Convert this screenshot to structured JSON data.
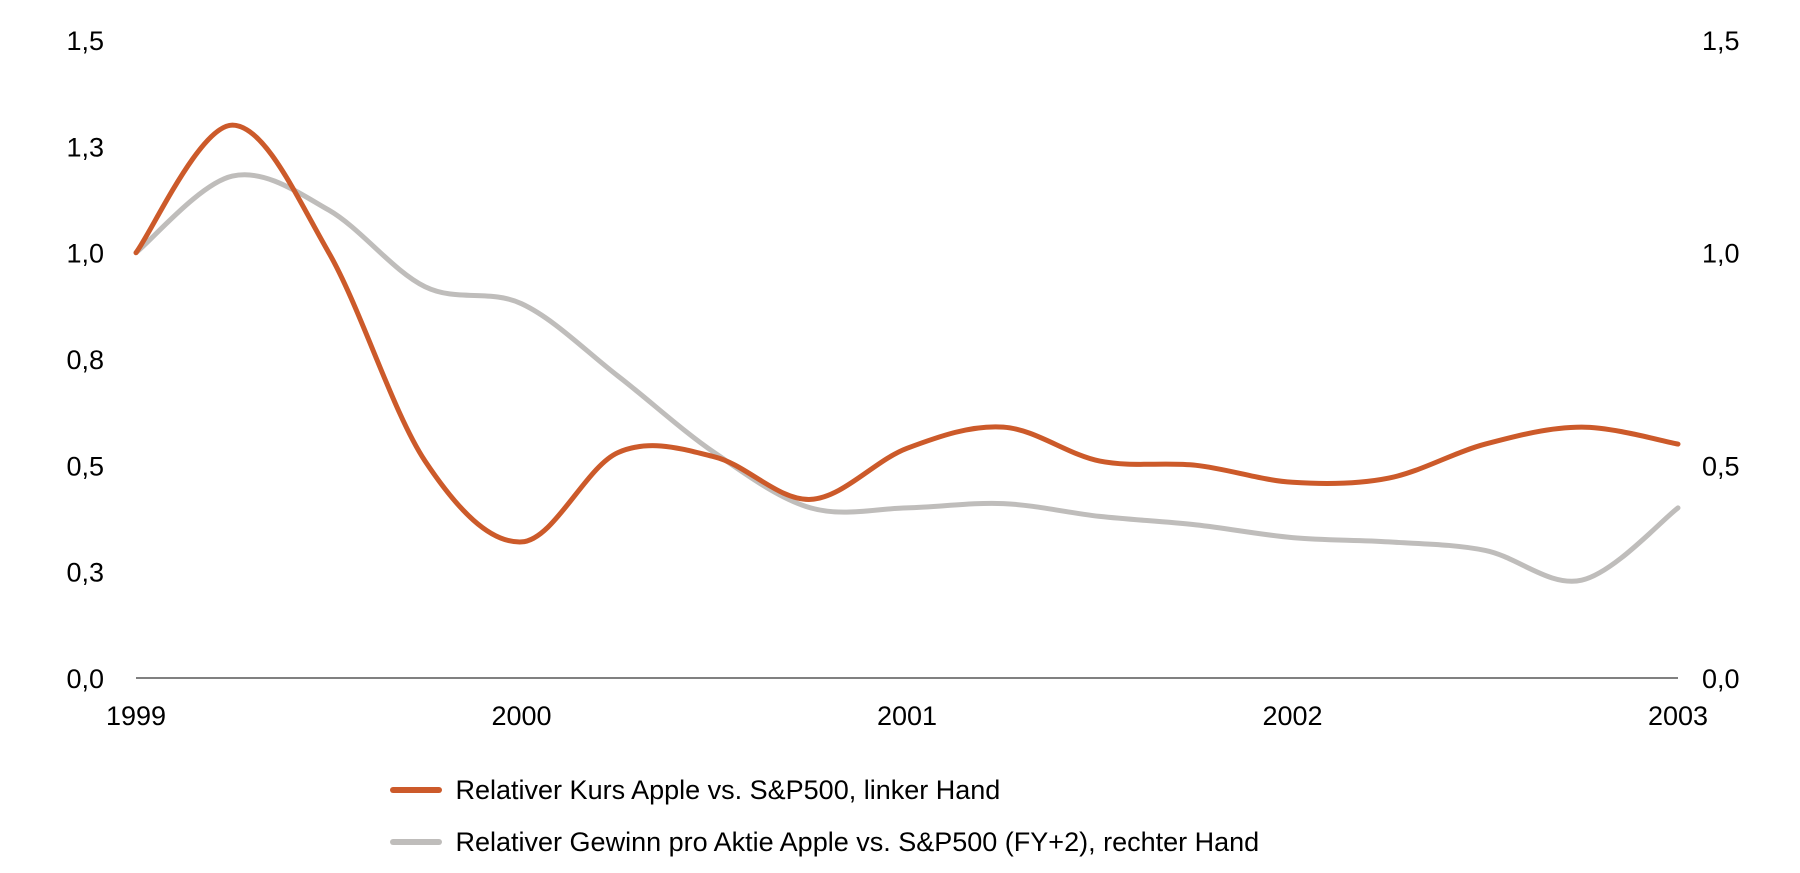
{
  "chart_data": {
    "type": "line",
    "title": "",
    "x_ticks": [
      "1999",
      "2000",
      "2001",
      "2002",
      "2003"
    ],
    "xlim": [
      1999,
      2003
    ],
    "y_left": {
      "ticks": [
        "0,0",
        "0,3",
        "0,5",
        "0,8",
        "1,0",
        "1,3",
        "1,5"
      ],
      "ylim": [
        0,
        1.5
      ]
    },
    "y_right": {
      "ticks": [
        "0,0",
        "0,5",
        "1,0",
        "1,5"
      ],
      "ylim": [
        0,
        1.5
      ]
    },
    "grid": false,
    "legend_position": "bottom",
    "series": [
      {
        "name": "Relativer Kurs Apple vs. S&P500, linker Hand",
        "axis": "left",
        "color": "#cc5a2a",
        "x": [
          1999.0,
          1999.25,
          1999.5,
          1999.75,
          2000.0,
          2000.25,
          2000.5,
          2000.75,
          2001.0,
          2001.25,
          2001.5,
          2001.75,
          2002.0,
          2002.25,
          2002.5,
          2002.75,
          2003.0
        ],
        "y": [
          1.0,
          1.3,
          1.0,
          0.51,
          0.32,
          0.53,
          0.52,
          0.42,
          0.54,
          0.59,
          0.51,
          0.5,
          0.46,
          0.47,
          0.55,
          0.59,
          0.55
        ]
      },
      {
        "name": "Relativer Gewinn pro Aktie Apple vs. S&P500 (FY+2), rechter Hand",
        "axis": "right",
        "color": "#bfbdbb",
        "x": [
          1999.0,
          1999.25,
          1999.5,
          1999.75,
          2000.0,
          2000.25,
          2000.5,
          2000.75,
          2001.0,
          2001.25,
          2001.5,
          2001.75,
          2002.0,
          2002.25,
          2002.5,
          2002.75,
          2003.0
        ],
        "y": [
          1.0,
          1.18,
          1.1,
          0.92,
          0.88,
          0.71,
          0.53,
          0.4,
          0.4,
          0.41,
          0.38,
          0.36,
          0.33,
          0.32,
          0.3,
          0.23,
          0.4
        ]
      }
    ]
  }
}
